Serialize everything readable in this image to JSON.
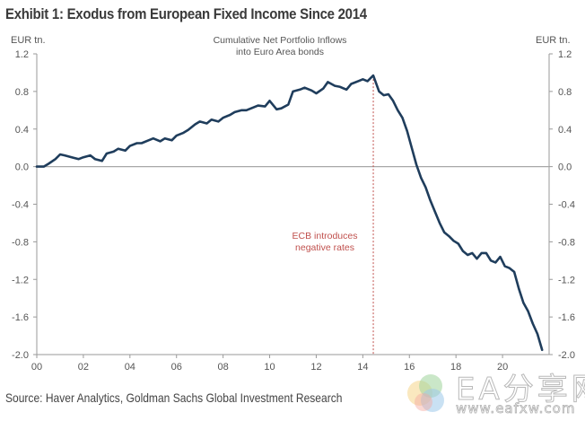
{
  "header": {
    "title": "Exhibit 1: Exodus from European Fixed Income Since 2014"
  },
  "footer": {
    "source": "Source: Haver Analytics, Goldman Sachs Global Investment Research"
  },
  "watermark": {
    "text_main": "EA分享网",
    "text_url": "www.eafxw.com"
  },
  "chart_data": {
    "type": "line",
    "title": "Cumulative Net Portfolio Inflows into Euro Area bonds",
    "subtitle_lines": [
      "Cumulative  Net  Portfolio  Inflows",
      "into Euro  Area  bonds"
    ],
    "ylabel_left": "EUR tn.",
    "ylabel_right": "EUR tn.",
    "xlabel": "",
    "xlim": [
      0,
      22
    ],
    "ylim": [
      -2.0,
      1.2
    ],
    "yticks": [
      1.2,
      0.8,
      0.4,
      0.0,
      -0.4,
      -0.8,
      -1.2,
      -1.6,
      -2.0
    ],
    "ytick_labels": [
      "1.2",
      "0.8",
      "0.4",
      "0.0",
      "-0.4",
      "-0.8",
      "-1.2",
      "-1.6",
      "-2.0"
    ],
    "xticks": [
      0,
      2,
      4,
      6,
      8,
      10,
      12,
      14,
      16,
      18,
      20
    ],
    "xtick_labels": [
      "00",
      "02",
      "04",
      "06",
      "08",
      "10",
      "12",
      "14",
      "16",
      "18",
      "20"
    ],
    "grid": false,
    "zero_line": true,
    "line_color": "#1f3d5c",
    "annotation": {
      "x": 14.45,
      "lines": [
        "ECB introduces",
        "negative  rates"
      ],
      "color": "#c0504d",
      "style": "dashed-vertical"
    },
    "series": [
      {
        "name": "Cumulative Net Portfolio Inflows into Euro Area bonds",
        "x": [
          0.0,
          0.3,
          0.5,
          0.8,
          1.0,
          1.2,
          1.5,
          1.8,
          2.0,
          2.3,
          2.5,
          2.8,
          3.0,
          3.3,
          3.5,
          3.8,
          4.0,
          4.3,
          4.5,
          4.8,
          5.0,
          5.3,
          5.5,
          5.8,
          6.0,
          6.3,
          6.5,
          6.8,
          7.0,
          7.3,
          7.5,
          7.8,
          8.0,
          8.3,
          8.5,
          8.8,
          9.0,
          9.3,
          9.5,
          9.8,
          10.0,
          10.3,
          10.5,
          10.8,
          11.0,
          11.3,
          11.5,
          11.8,
          12.0,
          12.3,
          12.5,
          12.8,
          13.0,
          13.3,
          13.5,
          13.8,
          14.0,
          14.2,
          14.45,
          14.7,
          14.9,
          15.1,
          15.3,
          15.5,
          15.7,
          15.9,
          16.1,
          16.3,
          16.5,
          16.7,
          16.9,
          17.1,
          17.3,
          17.5,
          17.7,
          17.9,
          18.1,
          18.3,
          18.5,
          18.7,
          18.9,
          19.1,
          19.3,
          19.5,
          19.7,
          19.9,
          20.1,
          20.3,
          20.5,
          20.7,
          20.9,
          21.1,
          21.3,
          21.5,
          21.7
        ],
        "y": [
          0.0,
          0.0,
          0.03,
          0.08,
          0.13,
          0.12,
          0.1,
          0.08,
          0.1,
          0.12,
          0.08,
          0.06,
          0.14,
          0.16,
          0.19,
          0.17,
          0.22,
          0.25,
          0.25,
          0.28,
          0.3,
          0.27,
          0.3,
          0.28,
          0.33,
          0.36,
          0.39,
          0.45,
          0.48,
          0.46,
          0.5,
          0.48,
          0.52,
          0.55,
          0.58,
          0.6,
          0.6,
          0.63,
          0.65,
          0.64,
          0.7,
          0.61,
          0.62,
          0.66,
          0.8,
          0.82,
          0.84,
          0.81,
          0.78,
          0.83,
          0.9,
          0.86,
          0.85,
          0.82,
          0.88,
          0.91,
          0.93,
          0.91,
          0.97,
          0.8,
          0.76,
          0.77,
          0.7,
          0.6,
          0.52,
          0.38,
          0.2,
          0.02,
          -0.12,
          -0.22,
          -0.36,
          -0.48,
          -0.6,
          -0.7,
          -0.74,
          -0.79,
          -0.82,
          -0.9,
          -0.94,
          -0.92,
          -0.98,
          -0.92,
          -0.92,
          -1.0,
          -1.02,
          -0.96,
          -1.06,
          -1.08,
          -1.12,
          -1.3,
          -1.45,
          -1.54,
          -1.67,
          -1.78,
          -1.95
        ]
      }
    ]
  }
}
